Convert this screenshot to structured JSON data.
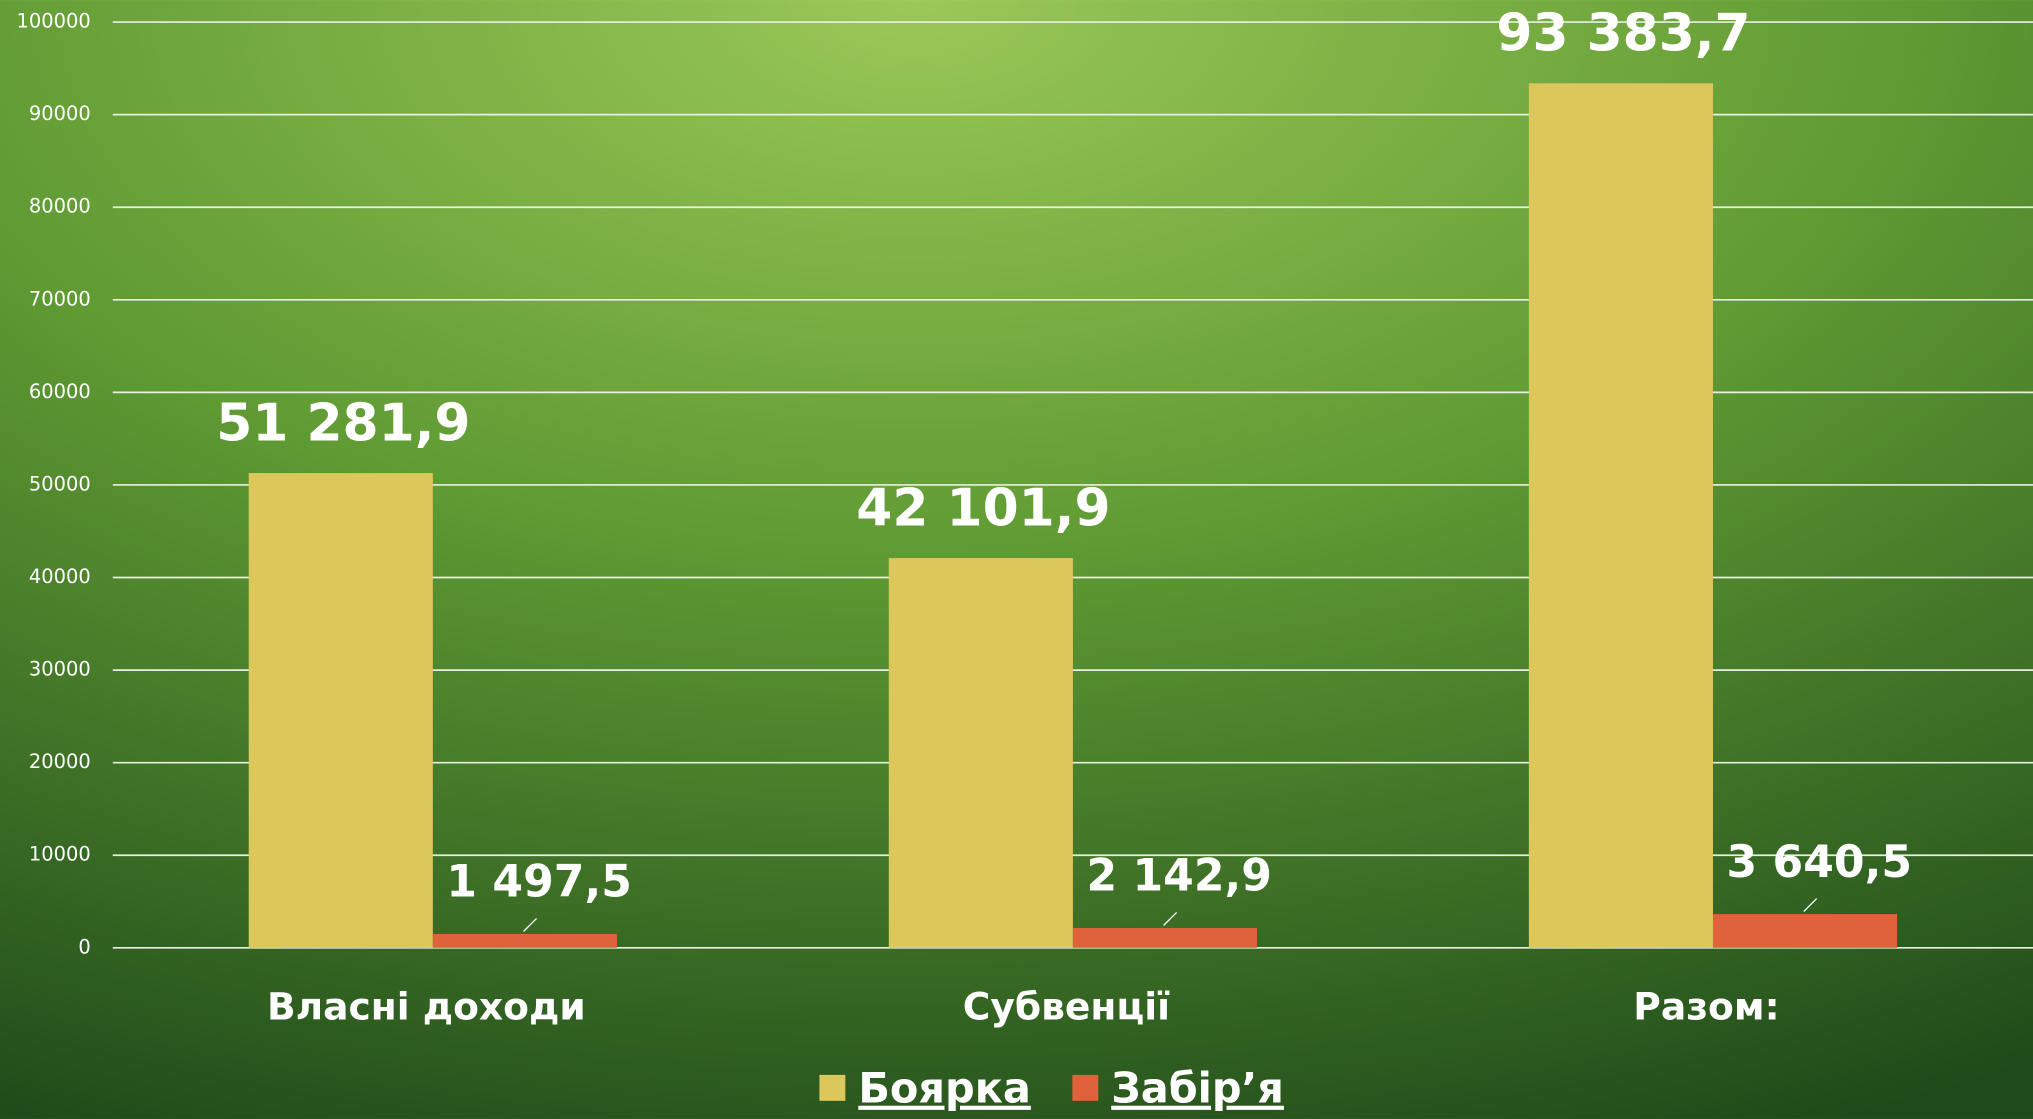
{
  "chart_data": {
    "type": "bar",
    "categories": [
      "Власні доходи",
      "Субвенції",
      "Разом:"
    ],
    "series": [
      {
        "name": "Боярка",
        "color": "#dcc85a",
        "values": [
          51281.9,
          42101.9,
          93383.7
        ],
        "value_labels": [
          "51 281,9",
          "42 101,9",
          "93 383,7"
        ]
      },
      {
        "name": "Забір’я",
        "color": "#e0623a",
        "values": [
          1497.5,
          2142.9,
          3640.5
        ],
        "value_labels": [
          "1 497,5",
          "2 142,9",
          "3 640,5"
        ]
      }
    ],
    "ylim": [
      0,
      100000
    ],
    "yticks": [
      0,
      10000,
      20000,
      30000,
      40000,
      50000,
      60000,
      70000,
      80000,
      90000,
      100000
    ],
    "grid": true,
    "legend": "bottom"
  }
}
